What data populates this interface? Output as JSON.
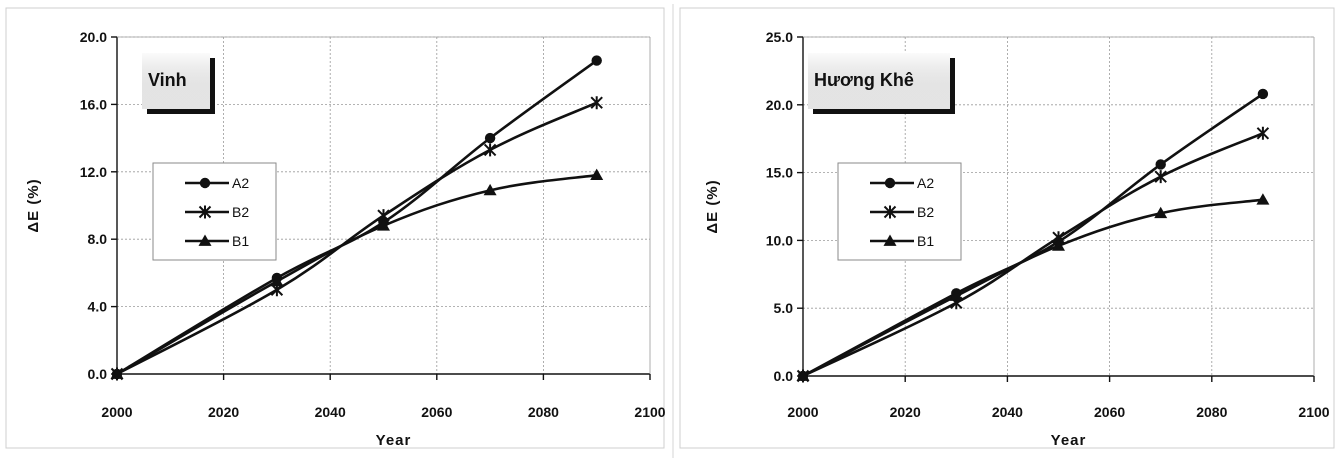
{
  "chart_data": [
    {
      "type": "line",
      "title": "Vinh",
      "xlabel": "Year",
      "ylabel": "ΔE (%)",
      "xlim": [
        2000,
        2100
      ],
      "ylim": [
        0,
        20
      ],
      "x_ticks": [
        "2000",
        "2020",
        "2040",
        "2060",
        "2080",
        "2100"
      ],
      "y_ticks": [
        "0.0",
        "4.0",
        "8.0",
        "12.0",
        "16.0",
        "20.0"
      ],
      "grid": true,
      "legend_position": "middle-left",
      "x": [
        2000,
        2030,
        2050,
        2070,
        2090
      ],
      "series": [
        {
          "name": "A2",
          "marker": "circle",
          "values": [
            0.0,
            5.7,
            9.0,
            14.0,
            18.6
          ]
        },
        {
          "name": "B2",
          "marker": "star",
          "values": [
            0.0,
            5.0,
            9.4,
            13.3,
            16.1
          ]
        },
        {
          "name": "B1",
          "marker": "triangle",
          "values": [
            0.0,
            5.5,
            8.8,
            10.9,
            11.8
          ]
        }
      ]
    },
    {
      "type": "line",
      "title": "Hương Khê",
      "xlabel": "Year",
      "ylabel": "ΔE (%)",
      "xlim": [
        2000,
        2100
      ],
      "ylim": [
        0,
        25
      ],
      "x_ticks": [
        "2000",
        "2020",
        "2040",
        "2060",
        "2080",
        "2100"
      ],
      "y_ticks": [
        "0.0",
        "5.0",
        "10.0",
        "15.0",
        "20.0",
        "25.0"
      ],
      "grid": true,
      "legend_position": "middle-left",
      "x": [
        2000,
        2030,
        2050,
        2070,
        2090
      ],
      "series": [
        {
          "name": "A2",
          "marker": "circle",
          "values": [
            0.0,
            6.1,
            9.9,
            15.6,
            20.8
          ]
        },
        {
          "name": "B2",
          "marker": "star",
          "values": [
            0.0,
            5.4,
            10.2,
            14.7,
            17.9
          ]
        },
        {
          "name": "B1",
          "marker": "triangle",
          "values": [
            0.0,
            5.9,
            9.6,
            12.0,
            13.0
          ]
        }
      ]
    }
  ]
}
